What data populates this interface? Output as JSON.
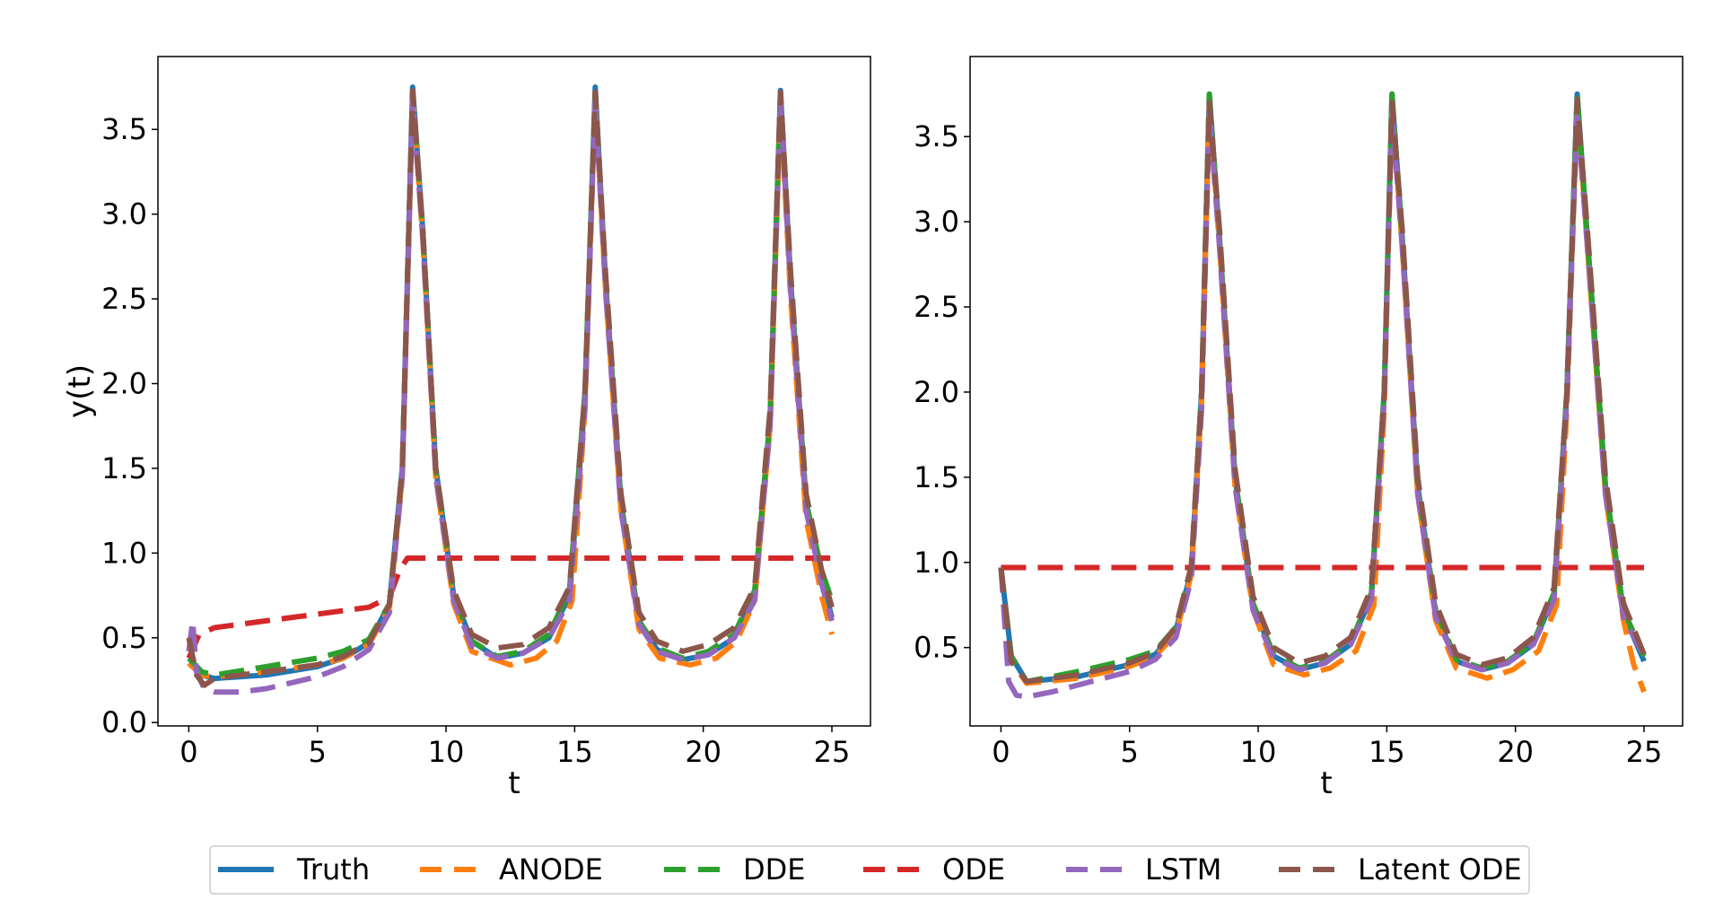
{
  "chart_data": {
    "type": "line",
    "colors": {
      "Truth": "#1f77b4",
      "ANODE": "#ff7f0e",
      "DDE": "#2ca02c",
      "ODE": "#d62728",
      "LSTM": "#9467bd",
      "Latent ODE": "#8c564b"
    },
    "legend": {
      "placement": "bottom-center",
      "entries": [
        "Truth",
        "ANODE",
        "DDE",
        "ODE",
        "LSTM",
        "Latent ODE"
      ],
      "styles": [
        "solid",
        "dashed",
        "dashed",
        "dashed",
        "dashed",
        "dashed"
      ]
    },
    "panels": [
      {
        "xlabel": "t",
        "ylabel": "y(t)",
        "xlim": [
          -1.2,
          26.5
        ],
        "ylim": [
          -0.02,
          3.93
        ],
        "xticks": [
          0,
          5,
          10,
          15,
          20,
          25
        ],
        "xtick_labels": [
          "0",
          "5",
          "10",
          "15",
          "20",
          "25"
        ],
        "yticks": [
          0.0,
          0.5,
          1.0,
          1.5,
          2.0,
          2.5,
          3.0,
          3.5
        ],
        "ytick_labels": [
          "0.0",
          "0.5",
          "1.0",
          "1.5",
          "2.0",
          "2.5",
          "3.0",
          "3.5"
        ],
        "series": [
          {
            "name": "Truth",
            "x": [
              0,
              0.5,
              1,
              3,
              5,
              6,
              7,
              7.8,
              8.3,
              8.7,
              9.1,
              9.6,
              10.3,
              11,
              12,
              13,
              14,
              14.8,
              15.4,
              15.8,
              16.2,
              16.8,
              17.5,
              18.2,
              19.2,
              20.2,
              21.2,
              22,
              22.6,
              23,
              23.4,
              24,
              24.6,
              25
            ],
            "y": [
              0.35,
              0.28,
              0.26,
              0.28,
              0.33,
              0.38,
              0.47,
              0.7,
              1.5,
              3.75,
              2.9,
              1.5,
              0.75,
              0.48,
              0.38,
              0.41,
              0.5,
              0.75,
              1.9,
              3.75,
              2.6,
              1.3,
              0.6,
              0.43,
              0.37,
              0.4,
              0.5,
              0.75,
              1.8,
              3.73,
              2.6,
              1.3,
              0.85,
              0.62
            ]
          },
          {
            "name": "ANODE",
            "x": [
              0,
              0.5,
              1,
              3,
              5,
              6,
              7,
              7.8,
              8.3,
              8.7,
              9.1,
              9.6,
              10.3,
              11,
              12.5,
              13.5,
              14.3,
              14.9,
              15.4,
              15.8,
              16.2,
              16.8,
              17.5,
              18.3,
              19.5,
              20.5,
              21.3,
              22,
              22.6,
              23,
              23.4,
              24,
              24.6,
              25
            ],
            "y": [
              0.35,
              0.28,
              0.27,
              0.3,
              0.34,
              0.38,
              0.46,
              0.68,
              1.45,
              3.7,
              2.85,
              1.45,
              0.7,
              0.42,
              0.34,
              0.38,
              0.48,
              0.72,
              1.85,
              3.7,
              2.55,
              1.25,
              0.55,
              0.38,
              0.34,
              0.38,
              0.48,
              0.72,
              1.75,
              3.65,
              2.5,
              1.2,
              0.75,
              0.52
            ]
          },
          {
            "name": "DDE",
            "x": [
              0,
              0.5,
              1,
              3,
              5,
              6,
              7,
              7.8,
              8.3,
              8.7,
              9.1,
              9.6,
              10.3,
              11,
              12,
              13,
              14,
              14.8,
              15.4,
              15.8,
              16.2,
              16.8,
              17.5,
              18.2,
              19.2,
              20.2,
              21.2,
              22,
              22.6,
              23,
              23.4,
              24,
              24.6,
              25
            ],
            "y": [
              0.38,
              0.3,
              0.28,
              0.33,
              0.38,
              0.42,
              0.49,
              0.7,
              1.5,
              3.72,
              2.9,
              1.5,
              0.75,
              0.48,
              0.39,
              0.42,
              0.52,
              0.78,
              1.95,
              3.72,
              2.6,
              1.3,
              0.6,
              0.44,
              0.38,
              0.42,
              0.52,
              0.78,
              1.8,
              3.7,
              2.6,
              1.3,
              0.9,
              0.72
            ]
          },
          {
            "name": "ODE",
            "x": [
              0,
              0.4,
              1,
              3,
              5,
              7,
              7.8,
              8.2,
              8.5,
              10,
              15,
              20,
              25
            ],
            "y": [
              0.38,
              0.52,
              0.56,
              0.6,
              0.64,
              0.68,
              0.74,
              0.9,
              0.97,
              0.97,
              0.97,
              0.97,
              0.97
            ]
          },
          {
            "name": "LSTM",
            "x": [
              0,
              0.15,
              0.3,
              0.6,
              1,
              2,
              3,
              5,
              6,
              7,
              7.8,
              8.3,
              8.7,
              9.1,
              9.6,
              10.3,
              11,
              12,
              13,
              14,
              14.8,
              15.4,
              15.8,
              16.2,
              16.8,
              17.5,
              18.2,
              19.2,
              20.2,
              21.2,
              22,
              22.6,
              23,
              23.4,
              24,
              24.6,
              25
            ],
            "y": [
              0.42,
              0.6,
              0.3,
              0.2,
              0.18,
              0.18,
              0.2,
              0.27,
              0.33,
              0.43,
              0.65,
              1.45,
              3.68,
              2.85,
              1.45,
              0.72,
              0.45,
              0.38,
              0.41,
              0.5,
              0.72,
              1.85,
              3.68,
              2.55,
              1.25,
              0.58,
              0.42,
              0.37,
              0.4,
              0.5,
              0.72,
              1.75,
              3.68,
              2.55,
              1.25,
              0.82,
              0.6
            ]
          },
          {
            "name": "Latent ODE",
            "x": [
              0,
              0.3,
              0.6,
              1,
              3,
              5,
              6,
              7,
              7.8,
              8.3,
              8.7,
              9.1,
              9.6,
              10.3,
              11,
              12,
              13,
              14,
              14.8,
              15.4,
              15.8,
              16.2,
              16.8,
              17.5,
              18.2,
              19.2,
              20.2,
              21.2,
              22,
              22.6,
              23,
              23.4,
              24,
              24.6,
              25
            ],
            "y": [
              0.5,
              0.28,
              0.22,
              0.26,
              0.3,
              0.34,
              0.39,
              0.47,
              0.7,
              1.5,
              3.73,
              2.9,
              1.5,
              0.78,
              0.52,
              0.44,
              0.46,
              0.56,
              0.8,
              1.95,
              3.72,
              2.65,
              1.35,
              0.65,
              0.48,
              0.42,
              0.46,
              0.56,
              0.8,
              1.85,
              3.72,
              2.65,
              1.35,
              0.9,
              0.68
            ]
          }
        ]
      },
      {
        "xlabel": "t",
        "ylabel": "",
        "xlim": [
          -1.2,
          26.5
        ],
        "ylim": [
          0.04,
          3.97
        ],
        "xticks": [
          0,
          5,
          10,
          15,
          20,
          25
        ],
        "xtick_labels": [
          "0",
          "5",
          "10",
          "15",
          "20",
          "25"
        ],
        "yticks": [
          0.5,
          1.0,
          1.5,
          2.0,
          2.5,
          3.0,
          3.5
        ],
        "ytick_labels": [
          "0.5",
          "1.0",
          "1.5",
          "2.0",
          "2.5",
          "3.0",
          "3.5"
        ],
        "series": [
          {
            "name": "Truth",
            "x": [
              0,
              0.4,
              1,
              3,
              5,
              6,
              6.8,
              7.4,
              7.8,
              8.1,
              8.5,
              9.1,
              9.8,
              10.6,
              11.6,
              12.6,
              13.6,
              14.4,
              14.9,
              15.2,
              15.6,
              16.2,
              16.9,
              17.7,
              18.7,
              19.7,
              20.7,
              21.5,
              22,
              22.4,
              22.8,
              23.5,
              24.2,
              25
            ],
            "y": [
              0.97,
              0.45,
              0.3,
              0.33,
              0.4,
              0.46,
              0.6,
              0.95,
              2.0,
              3.75,
              2.9,
              1.5,
              0.75,
              0.45,
              0.37,
              0.41,
              0.52,
              0.8,
              2.0,
              3.75,
              2.9,
              1.45,
              0.7,
              0.42,
              0.37,
              0.41,
              0.52,
              0.8,
              2.0,
              3.75,
              2.9,
              1.45,
              0.7,
              0.42
            ]
          },
          {
            "name": "ANODE",
            "x": [
              0,
              0.4,
              1,
              3,
              5,
              6,
              6.8,
              7.4,
              7.8,
              8.1,
              8.5,
              9.1,
              9.8,
              10.6,
              11.8,
              12.8,
              13.8,
              14.5,
              14.9,
              15.2,
              15.6,
              16.2,
              16.9,
              17.7,
              18.9,
              19.9,
              20.9,
              21.6,
              22,
              22.4,
              22.8,
              23.5,
              24.2,
              24.6,
              25
            ],
            "y": [
              0.97,
              0.42,
              0.29,
              0.32,
              0.39,
              0.45,
              0.58,
              0.93,
              1.95,
              3.7,
              2.85,
              1.45,
              0.72,
              0.4,
              0.34,
              0.38,
              0.48,
              0.75,
              1.9,
              3.7,
              2.85,
              1.4,
              0.66,
              0.38,
              0.32,
              0.37,
              0.48,
              0.75,
              1.9,
              3.7,
              2.85,
              1.4,
              0.66,
              0.4,
              0.24
            ]
          },
          {
            "name": "DDE",
            "x": [
              0,
              0.4,
              1,
              3,
              5,
              6,
              6.8,
              7.4,
              7.8,
              8.1,
              8.5,
              9.1,
              9.8,
              10.6,
              11.6,
              12.6,
              13.6,
              14.4,
              14.9,
              15.2,
              15.6,
              16.2,
              16.9,
              17.7,
              18.7,
              19.7,
              20.7,
              21.5,
              22,
              22.4,
              22.8,
              23.5,
              24.2,
              25
            ],
            "y": [
              0.97,
              0.45,
              0.3,
              0.36,
              0.43,
              0.48,
              0.62,
              0.96,
              2.0,
              3.75,
              2.9,
              1.5,
              0.76,
              0.46,
              0.38,
              0.42,
              0.53,
              0.82,
              2.0,
              3.75,
              2.9,
              1.45,
              0.72,
              0.43,
              0.38,
              0.42,
              0.53,
              0.82,
              2.0,
              3.75,
              2.9,
              1.45,
              0.72,
              0.45
            ]
          },
          {
            "name": "ODE",
            "x": [
              0,
              5,
              10,
              15,
              20,
              25
            ],
            "y": [
              0.97,
              0.97,
              0.97,
              0.97,
              0.97,
              0.97
            ]
          },
          {
            "name": "LSTM",
            "x": [
              0,
              0.3,
              0.6,
              1,
              2,
              3,
              5,
              6,
              6.8,
              7.4,
              7.8,
              8.1,
              8.5,
              9.1,
              9.8,
              10.6,
              11.6,
              12.6,
              13.6,
              14.4,
              14.9,
              15.2,
              15.6,
              16.2,
              16.9,
              17.7,
              18.7,
              19.7,
              20.7,
              21.5,
              22,
              22.4,
              22.8,
              23.5,
              24.2,
              25
            ],
            "y": [
              0.97,
              0.3,
              0.22,
              0.21,
              0.24,
              0.28,
              0.36,
              0.43,
              0.56,
              0.9,
              1.9,
              3.65,
              2.85,
              1.45,
              0.72,
              0.44,
              0.37,
              0.41,
              0.52,
              0.78,
              1.95,
              3.65,
              2.85,
              1.4,
              0.68,
              0.42,
              0.37,
              0.41,
              0.52,
              0.78,
              1.95,
              3.65,
              2.85,
              1.4,
              0.68,
              0.45
            ]
          },
          {
            "name": "Latent ODE",
            "x": [
              0,
              0.4,
              1,
              3,
              5,
              6,
              6.8,
              7.4,
              7.8,
              8.1,
              8.5,
              9.1,
              9.8,
              10.6,
              11.6,
              12.6,
              13.6,
              14.4,
              14.9,
              15.2,
              15.6,
              16.2,
              16.9,
              17.7,
              18.7,
              19.7,
              20.7,
              21.5,
              22,
              22.4,
              22.8,
              23.5,
              24.2,
              25
            ],
            "y": [
              0.97,
              0.42,
              0.3,
              0.34,
              0.41,
              0.47,
              0.62,
              0.98,
              2.0,
              3.7,
              2.95,
              1.55,
              0.8,
              0.5,
              0.41,
              0.45,
              0.56,
              0.85,
              2.0,
              3.7,
              2.95,
              1.5,
              0.76,
              0.46,
              0.4,
              0.44,
              0.56,
              0.85,
              2.0,
              3.72,
              2.95,
              1.5,
              0.76,
              0.46
            ]
          }
        ]
      }
    ]
  }
}
